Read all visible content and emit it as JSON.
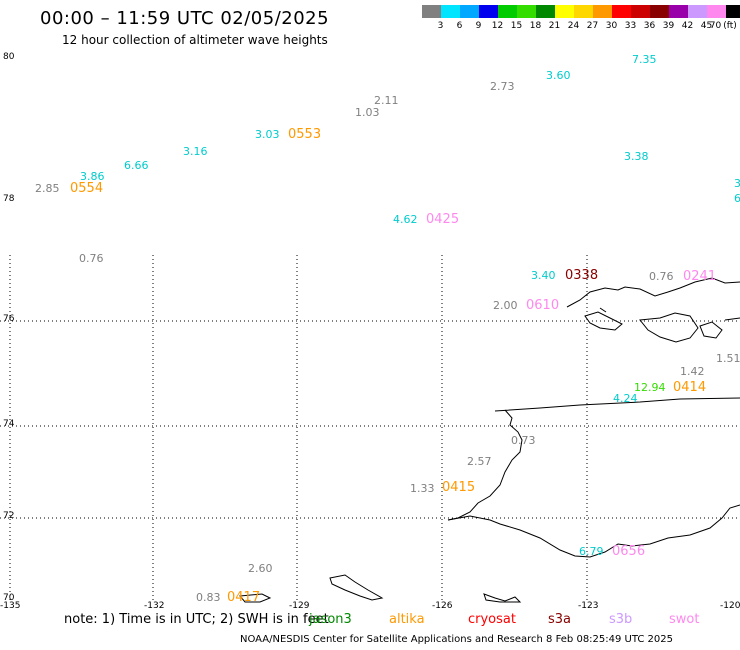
{
  "header": {
    "title": "00:00 – 11:59 UTC 02/05/2025",
    "subtitle": "12 hour collection of altimeter wave heights"
  },
  "colorbar": {
    "unit": "(ft)",
    "bins": [
      {
        "label": "3",
        "color": "#808080"
      },
      {
        "label": "6",
        "color": "#00e5ff"
      },
      {
        "label": "9",
        "color": "#00a8ff"
      },
      {
        "label": "12",
        "color": "#0000ee"
      },
      {
        "label": "15",
        "color": "#00cc00"
      },
      {
        "label": "18",
        "color": "#33dd00"
      },
      {
        "label": "21",
        "color": "#008800"
      },
      {
        "label": "24",
        "color": "#ffff00"
      },
      {
        "label": "27",
        "color": "#ffd700"
      },
      {
        "label": "30",
        "color": "#ff9900"
      },
      {
        "label": "33",
        "color": "#ff0000"
      },
      {
        "label": "36",
        "color": "#cc0000"
      },
      {
        "label": "39",
        "color": "#880000"
      },
      {
        "label": "42",
        "color": "#9900aa"
      },
      {
        "label": "45",
        "color": "#cc99ff"
      },
      {
        "label": "70",
        "color": "#ff88ee"
      },
      {
        "label": "",
        "color": "#000000"
      }
    ]
  },
  "axes": {
    "lat_labels": [
      "80",
      "78",
      "76",
      "74",
      "72",
      "70"
    ],
    "lon_labels": [
      "-135",
      "-132",
      "-129",
      "-126",
      "-123",
      "-120"
    ]
  },
  "wave_values": [
    {
      "text": "7.35",
      "color": "#00cccc"
    },
    {
      "text": "3.60",
      "color": "#00cccc"
    },
    {
      "text": "2.73",
      "color": "#808080"
    },
    {
      "text": "2.11",
      "color": "#808080"
    },
    {
      "text": "1.03",
      "color": "#808080"
    },
    {
      "text": "3.03",
      "color": "#00cccc"
    },
    {
      "text": "3.16",
      "color": "#00cccc"
    },
    {
      "text": "6.66",
      "color": "#00cccc"
    },
    {
      "text": "3.86",
      "color": "#00cccc"
    },
    {
      "text": "2.85",
      "color": "#808080"
    },
    {
      "text": "3.38",
      "color": "#00cccc"
    },
    {
      "text": "4.62",
      "color": "#00cccc"
    },
    {
      "text": "0.76",
      "color": "#808080"
    },
    {
      "text": "3.40",
      "color": "#00cccc"
    },
    {
      "text": "0.76",
      "color": "#808080"
    },
    {
      "text": "2.00",
      "color": "#808080"
    },
    {
      "text": "1.51",
      "color": "#808080"
    },
    {
      "text": "1.42",
      "color": "#808080"
    },
    {
      "text": "12.94",
      "color": "#33dd00"
    },
    {
      "text": "4.24",
      "color": "#00cccc"
    },
    {
      "text": "0.73",
      "color": "#808080"
    },
    {
      "text": "2.57",
      "color": "#808080"
    },
    {
      "text": "1.33",
      "color": "#808080"
    },
    {
      "text": "6.79",
      "color": "#00cccc"
    },
    {
      "text": "2.60",
      "color": "#808080"
    },
    {
      "text": "0.83",
      "color": "#808080"
    },
    {
      "text": "3",
      "color": "#00cccc"
    },
    {
      "text": "6",
      "color": "#00cccc"
    }
  ],
  "pass_times": [
    {
      "text": "0553",
      "color": "#ff9900"
    },
    {
      "text": "0554",
      "color": "#ff9900"
    },
    {
      "text": "0425",
      "color": "#ff88ee"
    },
    {
      "text": "0338",
      "color": "#880000"
    },
    {
      "text": "0241",
      "color": "#ff88ee"
    },
    {
      "text": "0610",
      "color": "#ff88ee"
    },
    {
      "text": "0414",
      "color": "#ff9900"
    },
    {
      "text": "0415",
      "color": "#ff9900"
    },
    {
      "text": "0656",
      "color": "#ff88ee"
    },
    {
      "text": "0417",
      "color": "#ff9900"
    }
  ],
  "footer": {
    "note": "note:  1) Time is in UTC; 2) SWH is in feet",
    "satellites": [
      {
        "name": "jason3",
        "color": "#008800"
      },
      {
        "name": "altika",
        "color": "#ff9900"
      },
      {
        "name": "cryosat",
        "color": "#ff0000"
      },
      {
        "name": "s3a",
        "color": "#880000"
      },
      {
        "name": "s3b",
        "color": "#cc99ff"
      },
      {
        "name": "swot",
        "color": "#ff88ee"
      }
    ],
    "credit": "NOAA/NESDIS Center for Satellite Applications and Research     8 Feb 08:25:49 UTC 2025"
  }
}
